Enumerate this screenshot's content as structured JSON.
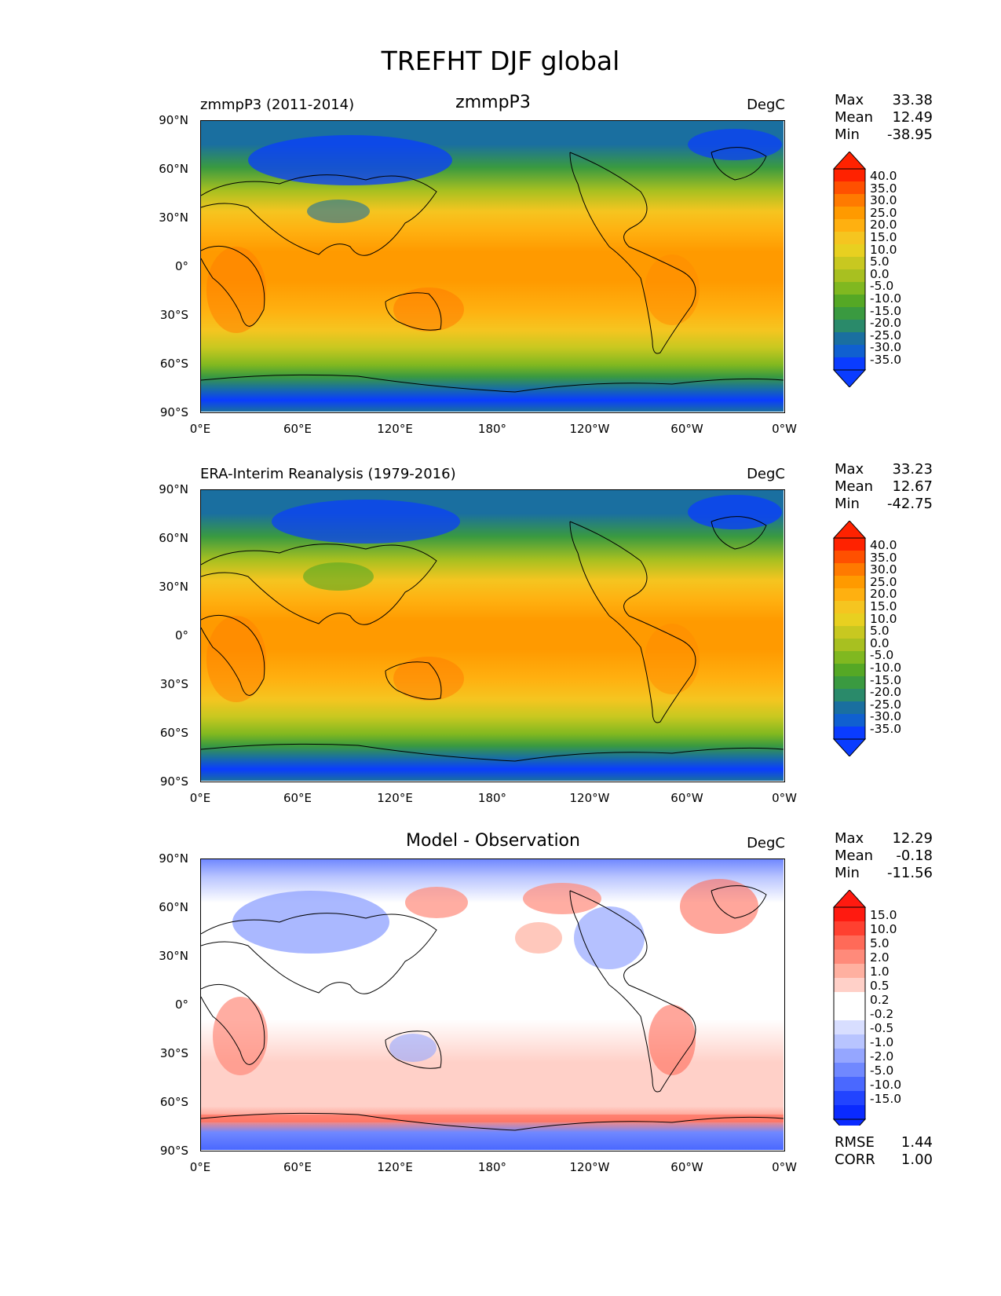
{
  "figure_title": "TREFHT DJF global",
  "lat_labels": [
    "90°N",
    "60°N",
    "30°N",
    "0°",
    "30°S",
    "60°S",
    "90°S"
  ],
  "lon_labels": [
    "0°E",
    "60°E",
    "120°E",
    "180°",
    "120°W",
    "60°W",
    "0°W"
  ],
  "panels": [
    {
      "left_title": "zmmpP3 (2011-2014)",
      "center_title": "zmmpP3",
      "units": "DegC",
      "stats": {
        "max_label": "Max",
        "max": "33.38",
        "mean_label": "Mean",
        "mean": "12.49",
        "min_label": "Min",
        "min": "-38.95"
      },
      "colorbar": [
        "40.0",
        "35.0",
        "30.0",
        "25.0",
        "20.0",
        "15.0",
        "10.0",
        "5.0",
        "0.0",
        "-5.0",
        "-10.0",
        "-15.0",
        "-20.0",
        "-25.0",
        "-30.0",
        "-35.0"
      ]
    },
    {
      "left_title": "ERA-Interim Reanalysis (1979-2016)",
      "center_title": "",
      "units": "DegC",
      "stats": {
        "max_label": "Max",
        "max": "33.23",
        "mean_label": "Mean",
        "mean": "12.67",
        "min_label": "Min",
        "min": "-42.75"
      },
      "colorbar": [
        "40.0",
        "35.0",
        "30.0",
        "25.0",
        "20.0",
        "15.0",
        "10.0",
        "5.0",
        "0.0",
        "-5.0",
        "-10.0",
        "-15.0",
        "-20.0",
        "-25.0",
        "-30.0",
        "-35.0"
      ]
    },
    {
      "left_title": "",
      "center_title": "Model - Observation",
      "units": "DegC",
      "stats": {
        "max_label": "Max",
        "max": "12.29",
        "mean_label": "Mean",
        "mean": "-0.18",
        "min_label": "Min",
        "min": "-11.56"
      },
      "colorbar": [
        "15.0",
        "10.0",
        "5.0",
        "2.0",
        "1.0",
        "0.5",
        "0.2",
        "-0.2",
        "-0.5",
        "-1.0",
        "-2.0",
        "-5.0",
        "-10.0",
        "-15.0"
      ],
      "extra_stats": {
        "rmse_label": "RMSE",
        "rmse": "1.44",
        "corr_label": "CORR",
        "corr": "1.00"
      }
    }
  ],
  "colors": {
    "temp_scale": [
      "#ff2200",
      "#ff5000",
      "#ff7a00",
      "#ff9a00",
      "#ffb010",
      "#f5c520",
      "#e8d020",
      "#c8c820",
      "#a8c020",
      "#80b820",
      "#55a825",
      "#3a9a40",
      "#2a8a6a",
      "#1a6fa0",
      "#1060d0",
      "#0a3cff"
    ],
    "diff_scale": [
      "#ff1a10",
      "#ff4030",
      "#ff6a58",
      "#ff8a7a",
      "#ffb0a0",
      "#ffd0c8",
      "#ffffff",
      "#ffffff",
      "#d8deff",
      "#b8c4ff",
      "#95a6ff",
      "#7088ff",
      "#4a68ff",
      "#2244ff",
      "#0a2aff"
    ]
  }
}
